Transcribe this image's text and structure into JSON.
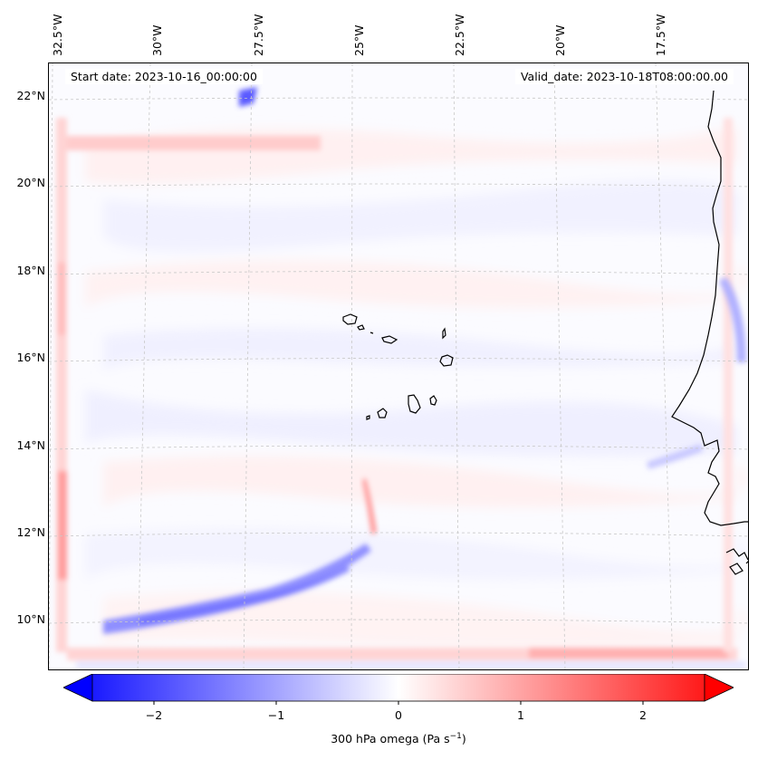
{
  "map": {
    "start_date": "Start date: 2023-10-16_00:00:00",
    "valid_date": "Valid_date: 2023-10-18T08:00:00.00",
    "lon_labels": [
      "32.5°W",
      "30°W",
      "27.5°W",
      "25°W",
      "22.5°W",
      "20°W",
      "17.5°W"
    ],
    "lat_labels": [
      "22°N",
      "20°N",
      "18°N",
      "16°N",
      "14°N",
      "12°N",
      "10°N"
    ],
    "field": "300 hPa omega",
    "features": [
      "Cape Verde islands",
      "West African coastline"
    ]
  },
  "colorbar": {
    "label_main": "300 hPa omega (Pa s",
    "label_exp": "−1",
    "label_end": ")",
    "ticks": [
      "−2",
      "−1",
      "0",
      "1",
      "2"
    ],
    "vmin": -2.5,
    "vmax": 2.5,
    "cmap": "bwr",
    "colors": {
      "low": "#0000ff",
      "mid": "#ffffff",
      "high": "#ff0000"
    }
  }
}
